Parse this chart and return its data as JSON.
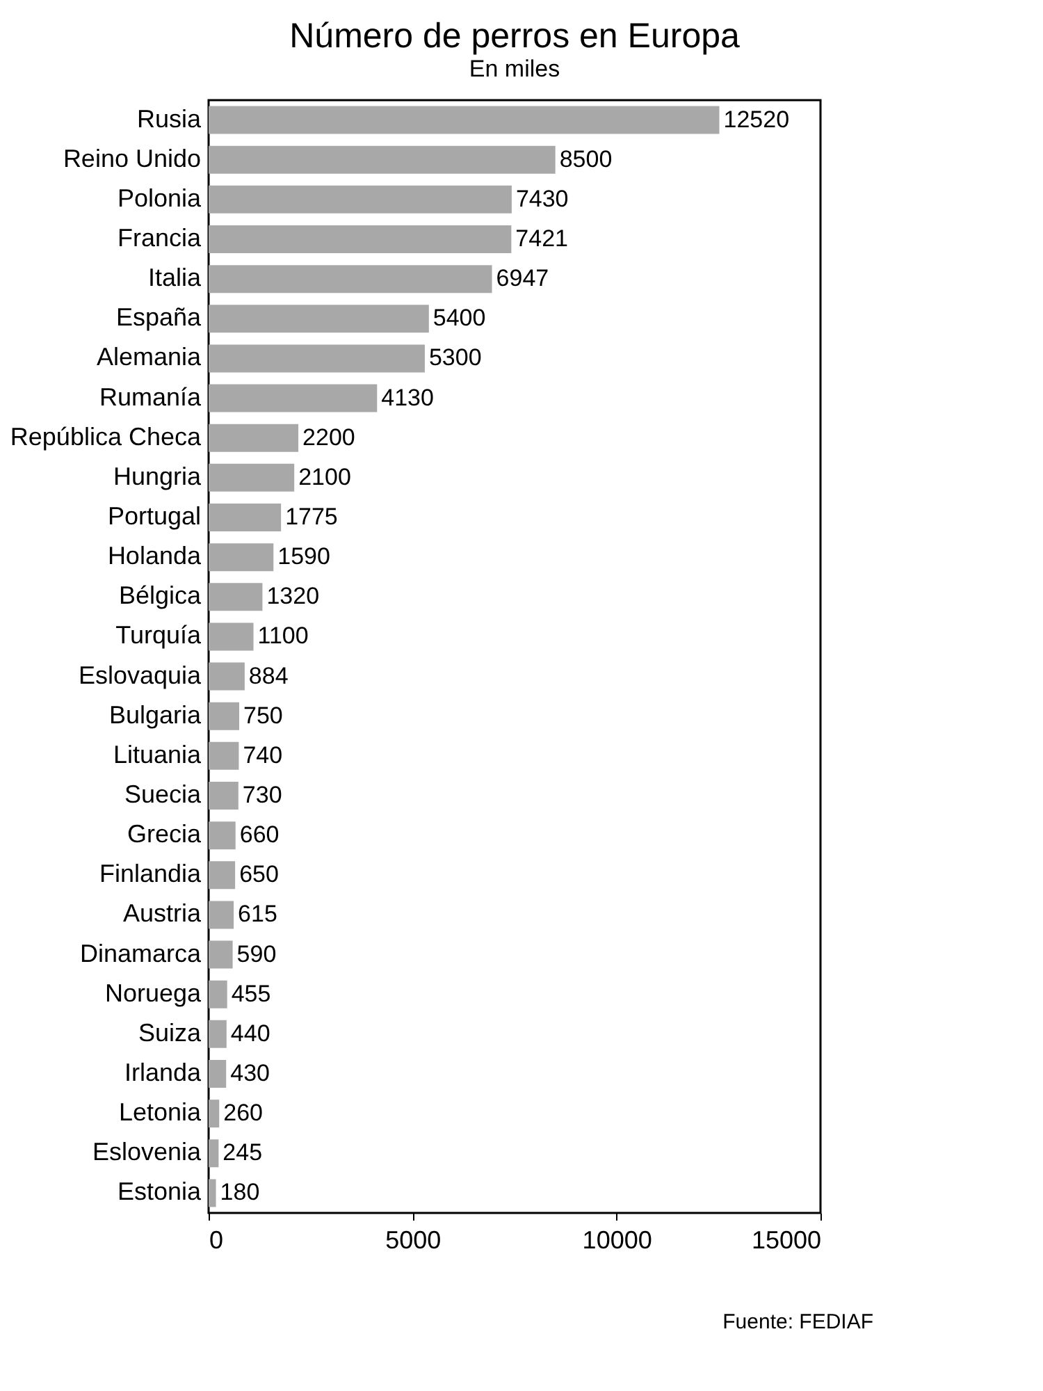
{
  "chart_data": {
    "type": "bar",
    "orientation": "horizontal",
    "title": "Número de perros en Europa",
    "subtitle": "En miles",
    "categories": [
      "Rusia",
      "Reino Unido",
      "Polonia",
      "Francia",
      "Italia",
      "España",
      "Alemania",
      "Rumanía",
      "República Checa",
      "Hungria",
      "Portugal",
      "Holanda",
      "Bélgica",
      "Turquía",
      "Eslovaquia",
      "Bulgaria",
      "Lituania",
      "Suecia",
      "Grecia",
      "Finlandia",
      "Austria",
      "Dinamarca",
      "Noruega",
      "Suiza",
      "Irlanda",
      "Letonia",
      "Eslovenia",
      "Estonia"
    ],
    "values": [
      12520,
      8500,
      7430,
      7421,
      6947,
      5400,
      5300,
      4130,
      2200,
      2100,
      1775,
      1590,
      1320,
      1100,
      884,
      750,
      740,
      730,
      660,
      650,
      615,
      590,
      455,
      440,
      430,
      260,
      245,
      180
    ],
    "color": "#a8a8a8",
    "xlim": [
      0,
      15000
    ],
    "xticks": [
      0,
      5000,
      10000,
      15000
    ],
    "grid": false,
    "data_labels": true,
    "annotations": [
      "Fuente: FEDIAF"
    ]
  }
}
